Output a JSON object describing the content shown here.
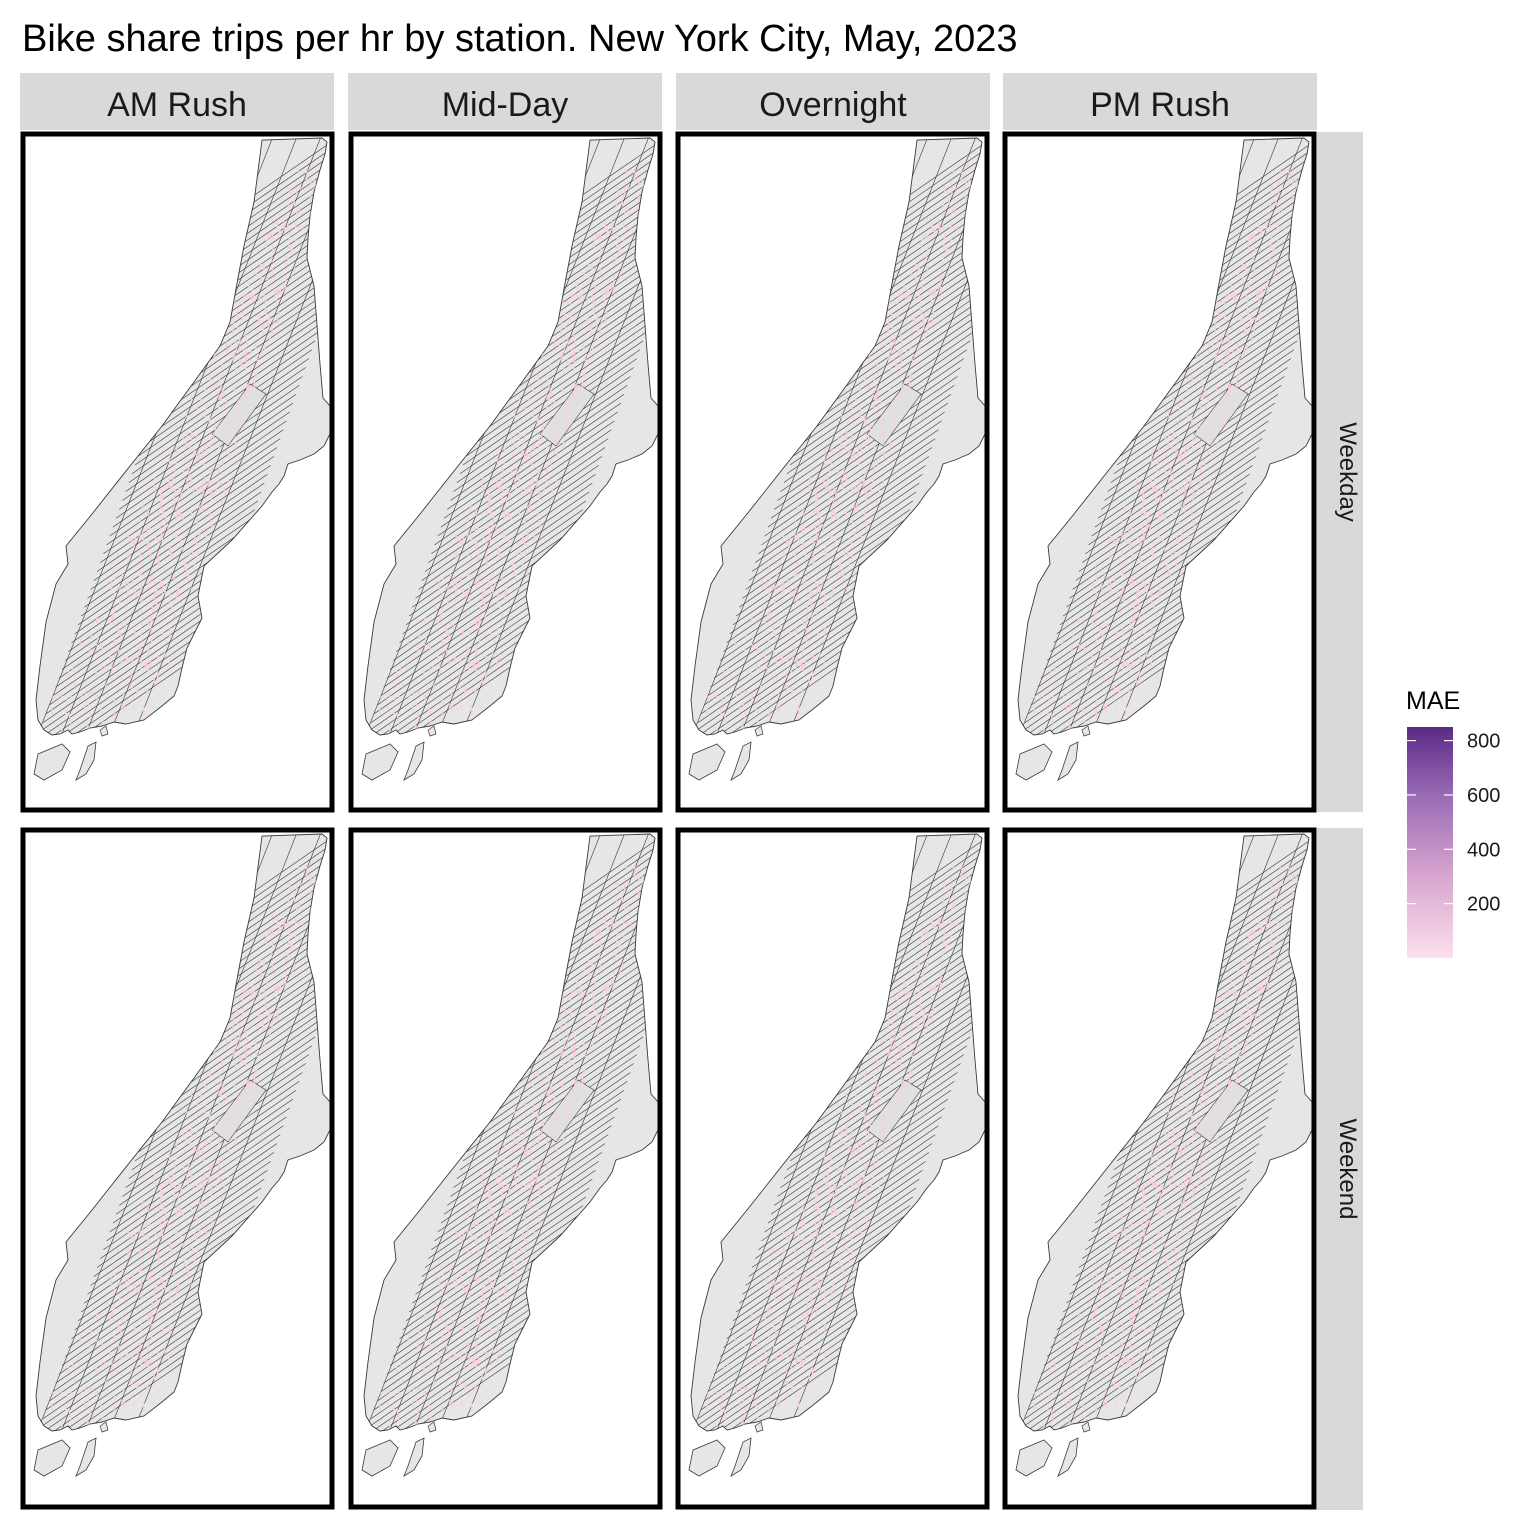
{
  "title": "Bike share trips per hr by station. New York City, May, 2023",
  "columns": [
    "AM Rush",
    "Mid-Day",
    "Overnight",
    "PM Rush"
  ],
  "rows": [
    "Weekday",
    "Weekend"
  ],
  "legend": {
    "title": "MAE",
    "ticks": [
      "800",
      "600",
      "400",
      "200"
    ],
    "tick_values": [
      800,
      600,
      400,
      200
    ],
    "range": [
      0,
      850
    ],
    "colors": {
      "low": "#fbe0ec",
      "high": "#5b2a86"
    }
  },
  "map": {
    "fill": "#e6e6e6",
    "outline": "#3a3a3a",
    "station_color": "#f9cde0",
    "panel_strip_fill": "#d9d9d9",
    "panel_border": "#000000"
  }
}
